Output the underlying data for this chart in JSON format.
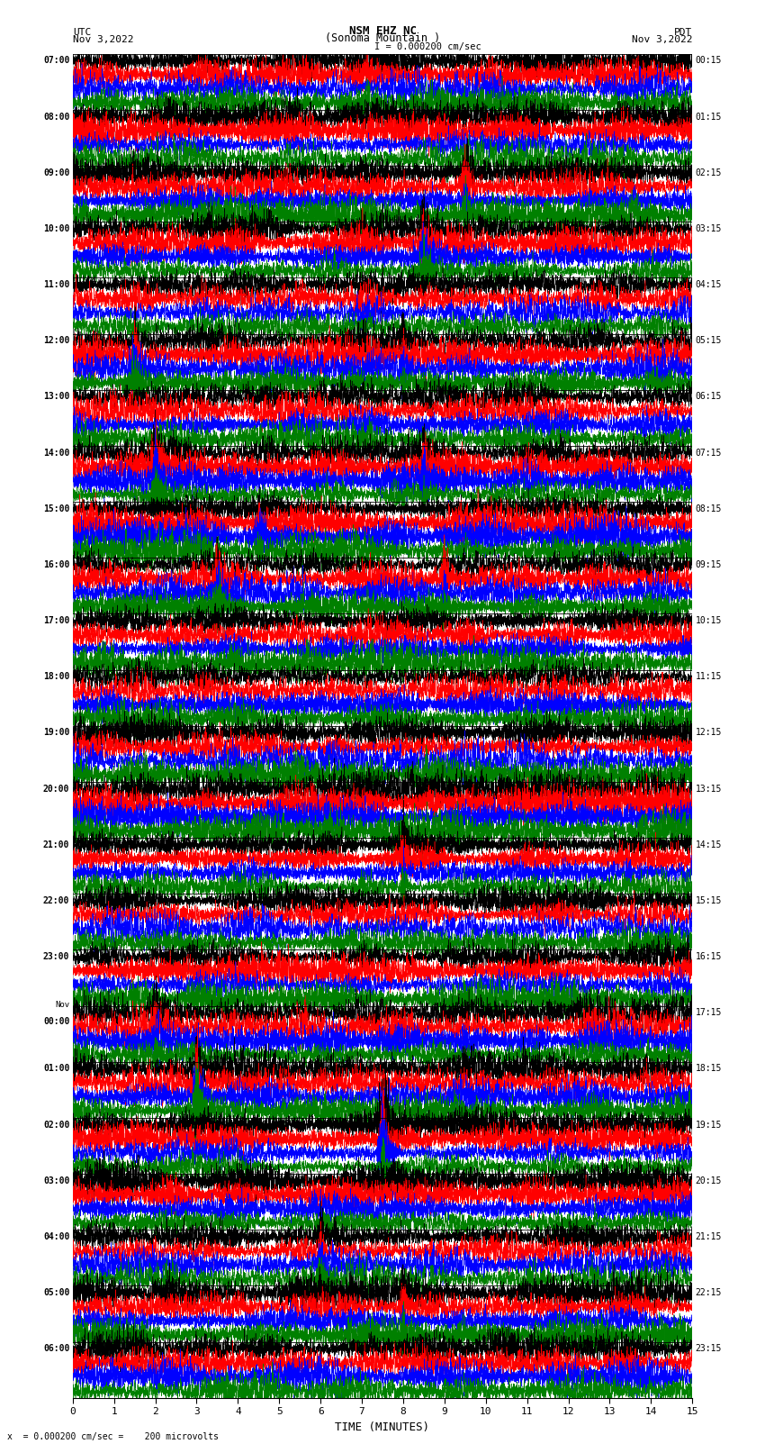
{
  "title_line1": "NSM EHZ NC",
  "title_line2": "(Sonoma Mountain )",
  "scale_label": "= 0.000200 cm/sec",
  "left_label_top": "UTC",
  "left_label_bot": "Nov 3,2022",
  "right_label_top": "PDT",
  "right_label_bot": "Nov 3,2022",
  "bottom_label": "x  = 0.000200 cm/sec =    200 microvolts",
  "xlabel": "TIME (MINUTES)",
  "xlim": [
    0,
    15
  ],
  "xticks": [
    0,
    1,
    2,
    3,
    4,
    5,
    6,
    7,
    8,
    9,
    10,
    11,
    12,
    13,
    14,
    15
  ],
  "left_times": [
    "07:00",
    "08:00",
    "09:00",
    "10:00",
    "11:00",
    "12:00",
    "13:00",
    "14:00",
    "15:00",
    "16:00",
    "17:00",
    "18:00",
    "19:00",
    "20:00",
    "21:00",
    "22:00",
    "23:00",
    "Nov\n00:00",
    "01:00",
    "02:00",
    "03:00",
    "04:00",
    "05:00",
    "06:00"
  ],
  "right_times": [
    "00:15",
    "01:15",
    "02:15",
    "03:15",
    "04:15",
    "05:15",
    "06:15",
    "07:15",
    "08:15",
    "09:15",
    "10:15",
    "11:15",
    "12:15",
    "13:15",
    "14:15",
    "15:15",
    "16:15",
    "17:15",
    "18:15",
    "19:15",
    "20:15",
    "21:15",
    "22:15",
    "23:15"
  ],
  "n_rows": 24,
  "traces_per_row": 4,
  "fig_width": 8.5,
  "fig_height": 16.13,
  "bg_color": "white",
  "trace_colors": [
    "black",
    "red",
    "blue",
    "green"
  ],
  "noise_seed": 42,
  "lw": 0.35
}
